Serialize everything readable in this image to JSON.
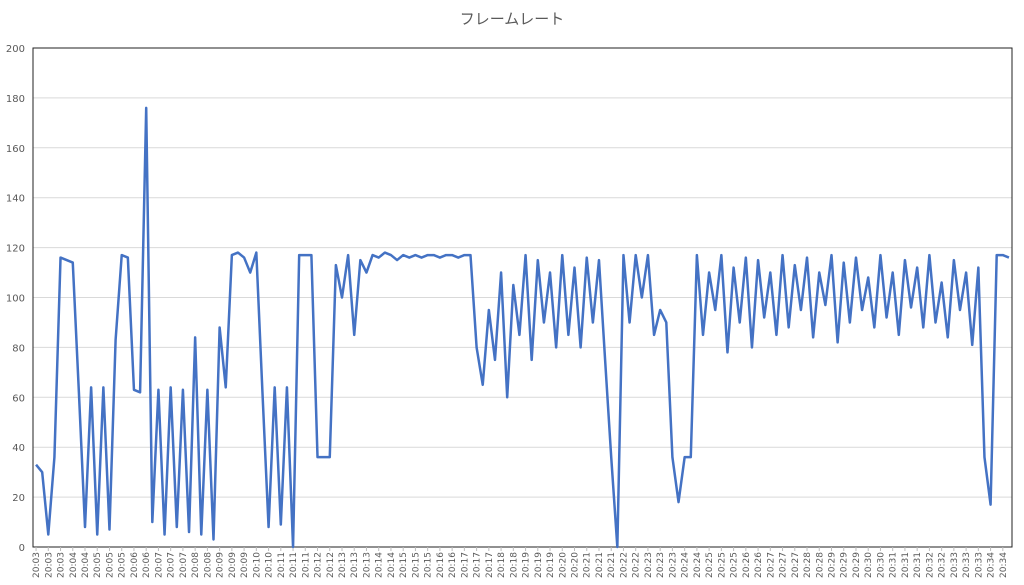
{
  "chart_data": {
    "type": "line",
    "title": "フレームレート",
    "categories": [
      "20:03",
      null,
      "20:03",
      null,
      "20:03",
      null,
      "20:04",
      null,
      "20:04",
      null,
      "20:05",
      null,
      "20:05",
      null,
      "20:05",
      null,
      "20:06",
      null,
      "20:06",
      null,
      "20:07",
      null,
      "20:07",
      null,
      "20:07",
      null,
      "20:08",
      null,
      "20:08",
      null,
      "20:09",
      null,
      "20:09",
      null,
      "20:09",
      null,
      "20:10",
      null,
      "20:10",
      null,
      "20:11",
      null,
      "20:11",
      null,
      "20:11",
      null,
      "20:12",
      null,
      "20:12",
      null,
      "20:13",
      null,
      "20:13",
      null,
      "20:13",
      null,
      "20:14",
      null,
      "20:14",
      null,
      "20:15",
      null,
      "20:15",
      null,
      "20:15",
      null,
      "20:16",
      null,
      "20:16",
      null,
      "20:17",
      null,
      "20:17",
      null,
      "20:17",
      null,
      "20:18",
      null,
      "20:18",
      null,
      "20:19",
      null,
      "20:19",
      null,
      "20:19",
      null,
      "20:20",
      null,
      "20:20",
      null,
      "20:21",
      null,
      "20:21",
      null,
      "20:21",
      null,
      "20:22",
      null,
      "20:22",
      null,
      "20:23",
      null,
      "20:23",
      null,
      "20:23",
      null,
      "20:24",
      null,
      "20:24",
      null,
      "20:25",
      null,
      "20:25",
      null,
      "20:25",
      null,
      "20:26",
      null,
      "20:26",
      null,
      "20:27",
      null,
      "20:27",
      null,
      "20:27",
      null,
      "20:28",
      null,
      "20:28",
      null,
      "20:29",
      null,
      "20:29",
      null,
      "20:29",
      null,
      "20:30",
      null,
      "20:30",
      null,
      "20:31",
      null,
      "20:31",
      null,
      "20:31",
      null,
      "20:32",
      null,
      "20:32",
      null,
      "20:33",
      null,
      "20:33",
      null,
      "20:33",
      null,
      "20:34",
      null,
      "20:34",
      null
    ],
    "series": [
      {
        "color": "#4472c4",
        "values": [
          33,
          30,
          5,
          36,
          116,
          115,
          114,
          62,
          8,
          64,
          5,
          64,
          7,
          83,
          117,
          116,
          63,
          62,
          176,
          10,
          63,
          5,
          64,
          8,
          63,
          6,
          84,
          5,
          63,
          3,
          88,
          64,
          117,
          118,
          116,
          110,
          118,
          62,
          8,
          64,
          9,
          64,
          0,
          117,
          117,
          117,
          36,
          36,
          36,
          113,
          100,
          117,
          85,
          115,
          110,
          117,
          116,
          118,
          117,
          115,
          117,
          116,
          117,
          116,
          117,
          117,
          116,
          117,
          117,
          116,
          117,
          117,
          80,
          65,
          95,
          75,
          110,
          60,
          105,
          85,
          117,
          75,
          115,
          90,
          110,
          80,
          117,
          85,
          112,
          80,
          116,
          90,
          115,
          75,
          36,
          0,
          117,
          90,
          117,
          100,
          117,
          85,
          95,
          90,
          36,
          18,
          36,
          36,
          117,
          85,
          110,
          95,
          117,
          78,
          112,
          90,
          116,
          80,
          115,
          92,
          110,
          85,
          117,
          88,
          113,
          95,
          116,
          84,
          110,
          97,
          117,
          82,
          114,
          90,
          116,
          95,
          108,
          88,
          117,
          92,
          110,
          85,
          115,
          96,
          112,
          88,
          117,
          90,
          106,
          84,
          115,
          95,
          110,
          81,
          112,
          36,
          17,
          117,
          117,
          116
        ]
      }
    ],
    "ylim": [
      0,
      200
    ],
    "yticks": [
      0,
      20,
      40,
      60,
      80,
      100,
      120,
      140,
      160,
      180,
      200
    ],
    "grid": true
  }
}
